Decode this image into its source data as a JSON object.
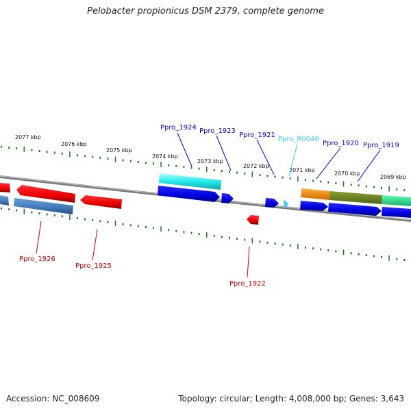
{
  "title": "Pelobacter propionicus DSM 2379, complete genome",
  "footer": {
    "accession": "Accession: NC_008609",
    "summary": "Topology: circular; Length: 4,008,000 bp; Genes: 3,643"
  },
  "scale_labels": [
    "2077 kbp",
    "2076 kbp",
    "2075 kbp",
    "2074 kbp",
    "2073 kbp",
    "2072 kbp",
    "2071 kbp",
    "2070 kbp",
    "2069 kbp"
  ],
  "gene_labels": [
    {
      "text": "Ppro_1924",
      "color": "#0000cc"
    },
    {
      "text": "Ppro_1923",
      "color": "#0000cc"
    },
    {
      "text": "Ppro_1921",
      "color": "#0000cc"
    },
    {
      "text": "Ppro_R0040",
      "color": "#33ccff"
    },
    {
      "text": "Ppro_1920",
      "color": "#0000cc"
    },
    {
      "text": "Ppro_1919",
      "color": "#0000cc"
    },
    {
      "text": "Ppro_1926",
      "color": "#cc0000"
    },
    {
      "text": "Ppro_1925",
      "color": "#cc0000"
    },
    {
      "text": "Ppro_1922",
      "color": "#cc0000"
    }
  ],
  "colors": {
    "backbone": "#8a8a8a",
    "ticks": "#1a7a1a",
    "forward_gene": "#0000ee",
    "reverse_gene": "#ee0000",
    "rna_gene": "#22ccee"
  }
}
